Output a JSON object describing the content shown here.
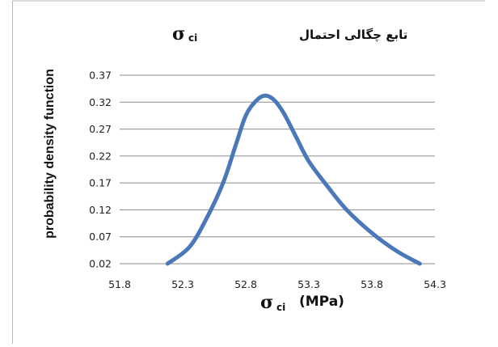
{
  "chart_data": {
    "type": "line",
    "title": "تابع چگالی احتمال",
    "title_symbol": "σ",
    "title_subscript": "ci",
    "xlabel_symbol": "σ",
    "xlabel_subscript": "ci",
    "xlabel_unit": "(MPa)",
    "ylabel": "probability density function",
    "xlim": [
      51.8,
      54.3
    ],
    "ylim": [
      0.02,
      0.37
    ],
    "x_ticks": [
      "51.8",
      "52.3",
      "52.8",
      "53.3",
      "53.8",
      "54.3"
    ],
    "y_ticks": [
      "0.02",
      "0.07",
      "0.12",
      "0.17",
      "0.22",
      "0.27",
      "0.32",
      "0.37"
    ],
    "grid": "horizontal",
    "line_color": "#4a78b8",
    "series": [
      {
        "x": [
          52.18,
          52.35,
          52.48,
          52.62,
          52.72,
          52.8,
          52.88,
          52.95,
          53.02,
          53.1,
          53.2,
          53.3,
          53.45,
          53.6,
          53.8,
          54.0,
          54.18
        ],
        "y": [
          0.02,
          0.05,
          0.1,
          0.17,
          0.24,
          0.295,
          0.322,
          0.332,
          0.325,
          0.3,
          0.255,
          0.21,
          0.163,
          0.12,
          0.077,
          0.043,
          0.02
        ]
      }
    ]
  }
}
